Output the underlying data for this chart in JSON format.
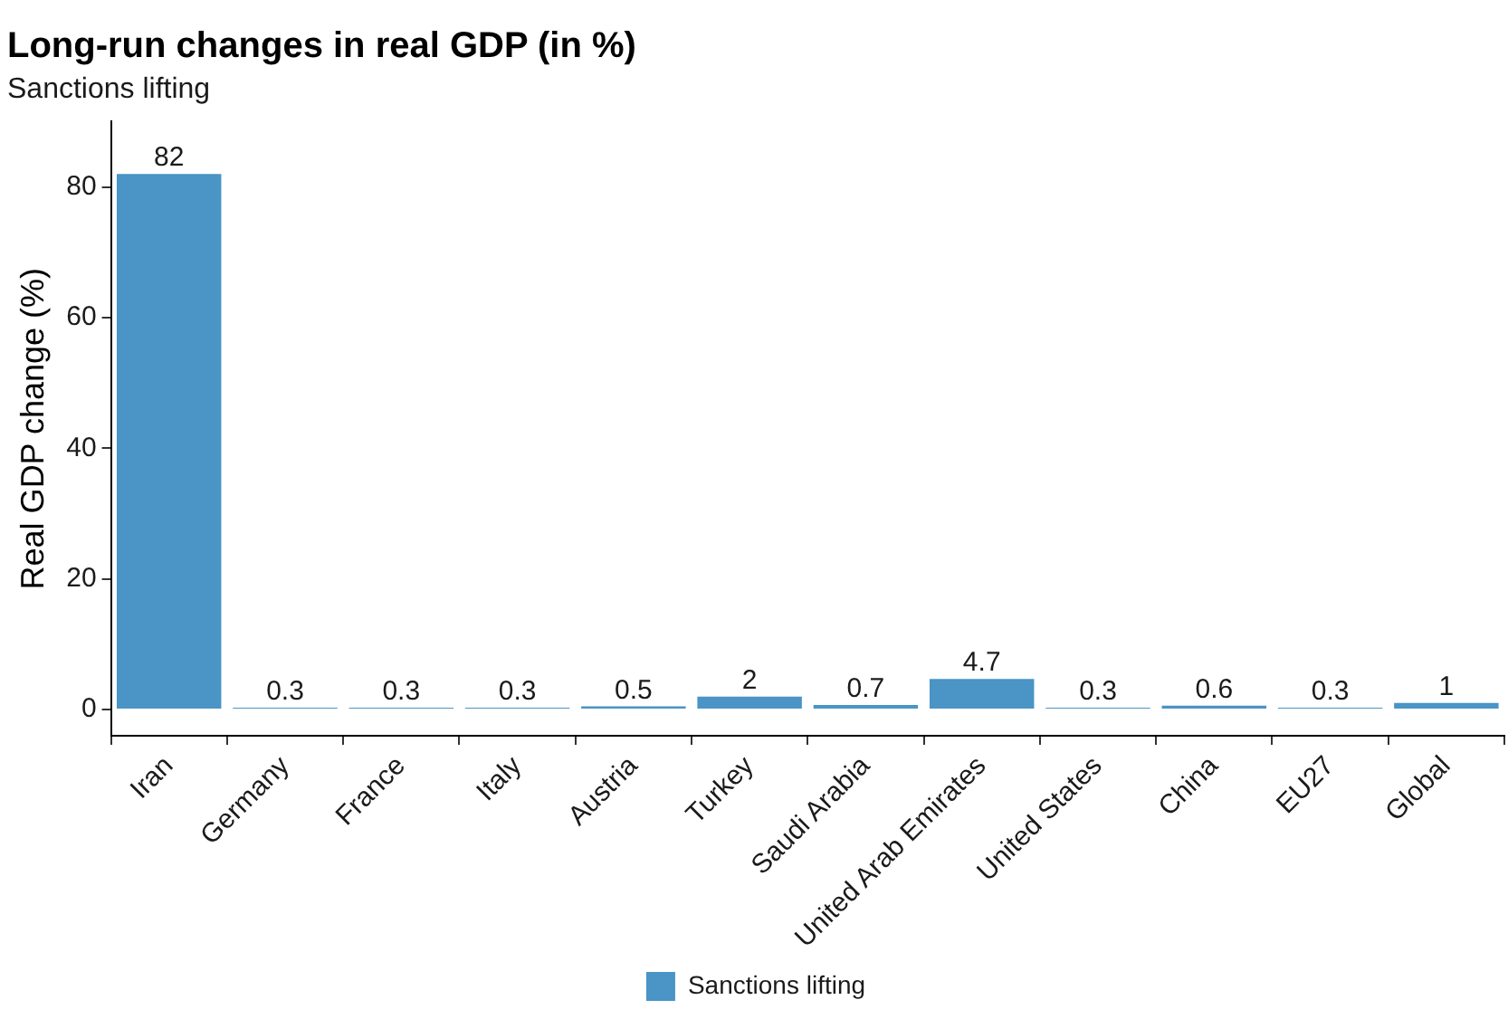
{
  "chart_data": {
    "type": "bar",
    "title": "Long-run changes in real GDP (in %)",
    "subtitle": "Sanctions lifting",
    "ylabel": "Real GDP change (%)",
    "categories": [
      "Iran",
      "Germany",
      "France",
      "Italy",
      "Austria",
      "Turkey",
      "Saudi Arabia",
      "United Arab Emirates",
      "United States",
      "China",
      "EU27",
      "Global"
    ],
    "series": [
      {
        "name": "Sanctions lifting",
        "color": "#4a94c6",
        "values": [
          82,
          0.3,
          0.3,
          0.3,
          0.5,
          2,
          0.7,
          4.7,
          0.3,
          0.6,
          0.3,
          1
        ]
      }
    ],
    "ylim": [
      -4,
      90
    ],
    "yticks": [
      0,
      20,
      40,
      60,
      80
    ],
    "grid": false,
    "legend": "bottom",
    "data_labels": true
  }
}
